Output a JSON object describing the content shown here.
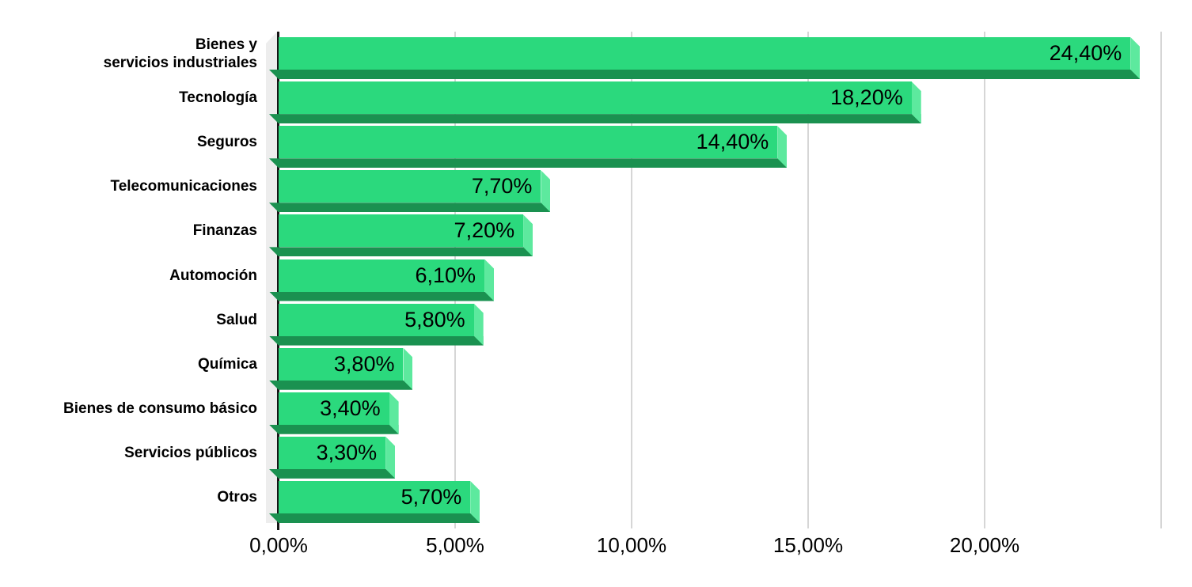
{
  "chart_data": {
    "type": "bar",
    "orientation": "horizontal",
    "style": "3d-extruded-bars",
    "title": "",
    "xlabel": "",
    "ylabel": "",
    "xlim": [
      0,
      25
    ],
    "grid": true,
    "legend": false,
    "categories": [
      "Bienes y\nservicios industriales",
      "Tecnología",
      "Seguros",
      "Telecomunicaciones",
      "Finanzas",
      "Automoción",
      "Salud",
      "Química",
      "Bienes de consumo básico",
      "Servicios públicos",
      "Otros"
    ],
    "values": [
      24.4,
      18.2,
      14.4,
      7.7,
      7.2,
      6.1,
      5.8,
      3.8,
      3.4,
      3.3,
      5.7
    ],
    "value_labels": [
      "24,40%",
      "18,20%",
      "14,40%",
      "7,70%",
      "7,20%",
      "6,10%",
      "5,80%",
      "3,80%",
      "3,40%",
      "3,30%",
      "5,70%"
    ],
    "x_ticks": [
      {
        "label": "0,00%",
        "pct": 0
      },
      {
        "label": "5,00%",
        "pct": 5
      },
      {
        "label": "10,00%",
        "pct": 10
      },
      {
        "label": "15,00%",
        "pct": 15
      },
      {
        "label": "20,00%",
        "pct": 20
      }
    ],
    "gridline_pcts": [
      5,
      10,
      15,
      20,
      25
    ],
    "colors": {
      "bar_face": "#2bd97d",
      "bar_side_dark": "#1a9150",
      "bar_end_cap": "#5de99e",
      "wall": "#ededed",
      "gridline": "#d6d6d6",
      "axis_line": "#161616",
      "text": "#000000",
      "background": "#ffffff"
    }
  }
}
